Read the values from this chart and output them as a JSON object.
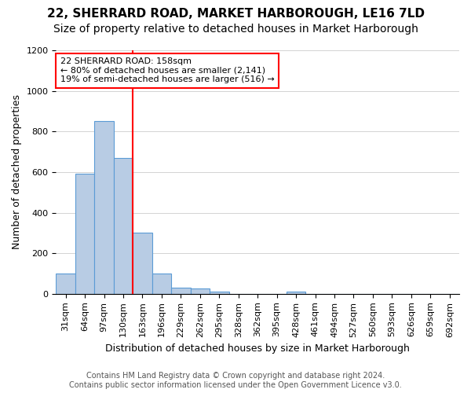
{
  "title": "22, SHERRARD ROAD, MARKET HARBOROUGH, LE16 7LD",
  "subtitle": "Size of property relative to detached houses in Market Harborough",
  "xlabel": "Distribution of detached houses by size in Market Harborough",
  "ylabel": "Number of detached properties",
  "footer_line1": "Contains HM Land Registry data © Crown copyright and database right 2024.",
  "footer_line2": "Contains public sector information licensed under the Open Government Licence v3.0.",
  "bins": [
    "31sqm",
    "64sqm",
    "97sqm",
    "130sqm",
    "163sqm",
    "196sqm",
    "229sqm",
    "262sqm",
    "295sqm",
    "328sqm",
    "362sqm",
    "395sqm",
    "428sqm",
    "461sqm",
    "494sqm",
    "527sqm",
    "560sqm",
    "593sqm",
    "626sqm",
    "659sqm",
    "692sqm"
  ],
  "values": [
    100,
    590,
    850,
    670,
    300,
    100,
    30,
    25,
    10,
    0,
    0,
    0,
    10,
    0,
    0,
    0,
    0,
    0,
    0,
    0,
    0
  ],
  "bar_color": "#b8cce4",
  "bar_edge_color": "#5b9bd5",
  "vline_label": "22 SHERRARD ROAD: 158sqm",
  "annotation_line2": "← 80% of detached houses are smaller (2,141)",
  "annotation_line3": "19% of semi-detached houses are larger (516) →",
  "ylim": [
    0,
    1200
  ],
  "yticks": [
    0,
    200,
    400,
    600,
    800,
    1000,
    1200
  ],
  "title_fontsize": 11,
  "subtitle_fontsize": 10,
  "axis_label_fontsize": 9,
  "tick_fontsize": 8,
  "annotation_fontsize": 8,
  "footer_fontsize": 7
}
